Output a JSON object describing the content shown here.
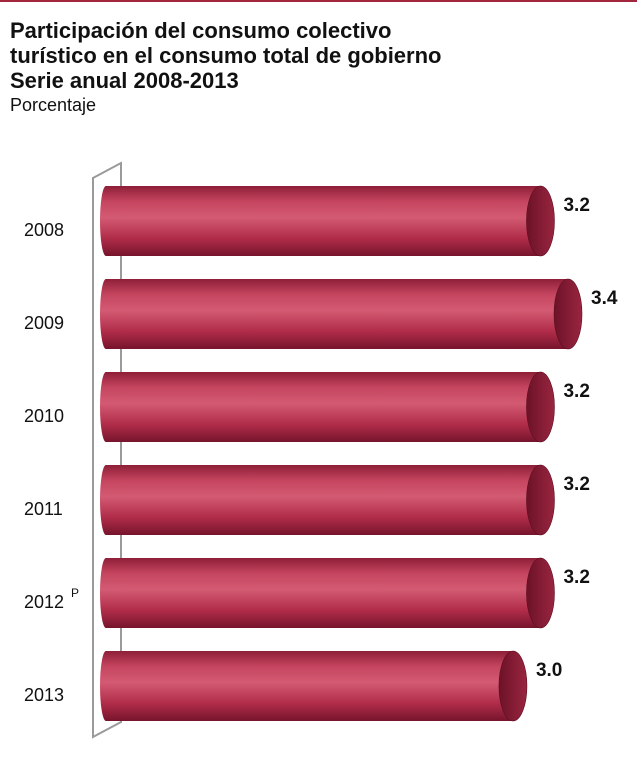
{
  "header": {
    "title_lines": [
      "Participación del consumo colectivo",
      "turístico en el consumo total de gobierno",
      "Serie anual 2008-2013"
    ],
    "subtitle": "Porcentaje"
  },
  "chart_data": {
    "type": "bar",
    "orientation": "horizontal",
    "style": "3d-cylinder",
    "title": "Participación del consumo colectivo turístico en el consumo total de gobierno Serie anual 2008-2013",
    "subtitle": "Porcentaje",
    "categories": [
      {
        "year": "2008",
        "sup": ""
      },
      {
        "year": "2009",
        "sup": ""
      },
      {
        "year": "2010",
        "sup": ""
      },
      {
        "year": "2011",
        "sup": ""
      },
      {
        "year": "2012",
        "sup": "P"
      },
      {
        "year": "2013",
        "sup": ""
      }
    ],
    "values": [
      3.2,
      3.4,
      3.2,
      3.2,
      3.2,
      3.0
    ],
    "value_labels": [
      "3.2",
      "3.4",
      "3.2",
      "3.2",
      "3.2",
      "3.0"
    ],
    "xlim": [
      0,
      3.4
    ],
    "grid": false,
    "legend": "none",
    "colors": {
      "bar": "#b8324f",
      "bar_light": "#d0566f",
      "bar_dark": "#7e1830",
      "bar_end": "#8e1f38",
      "axis_wall": "#9a9a9a",
      "rule": "#a3263f"
    }
  }
}
